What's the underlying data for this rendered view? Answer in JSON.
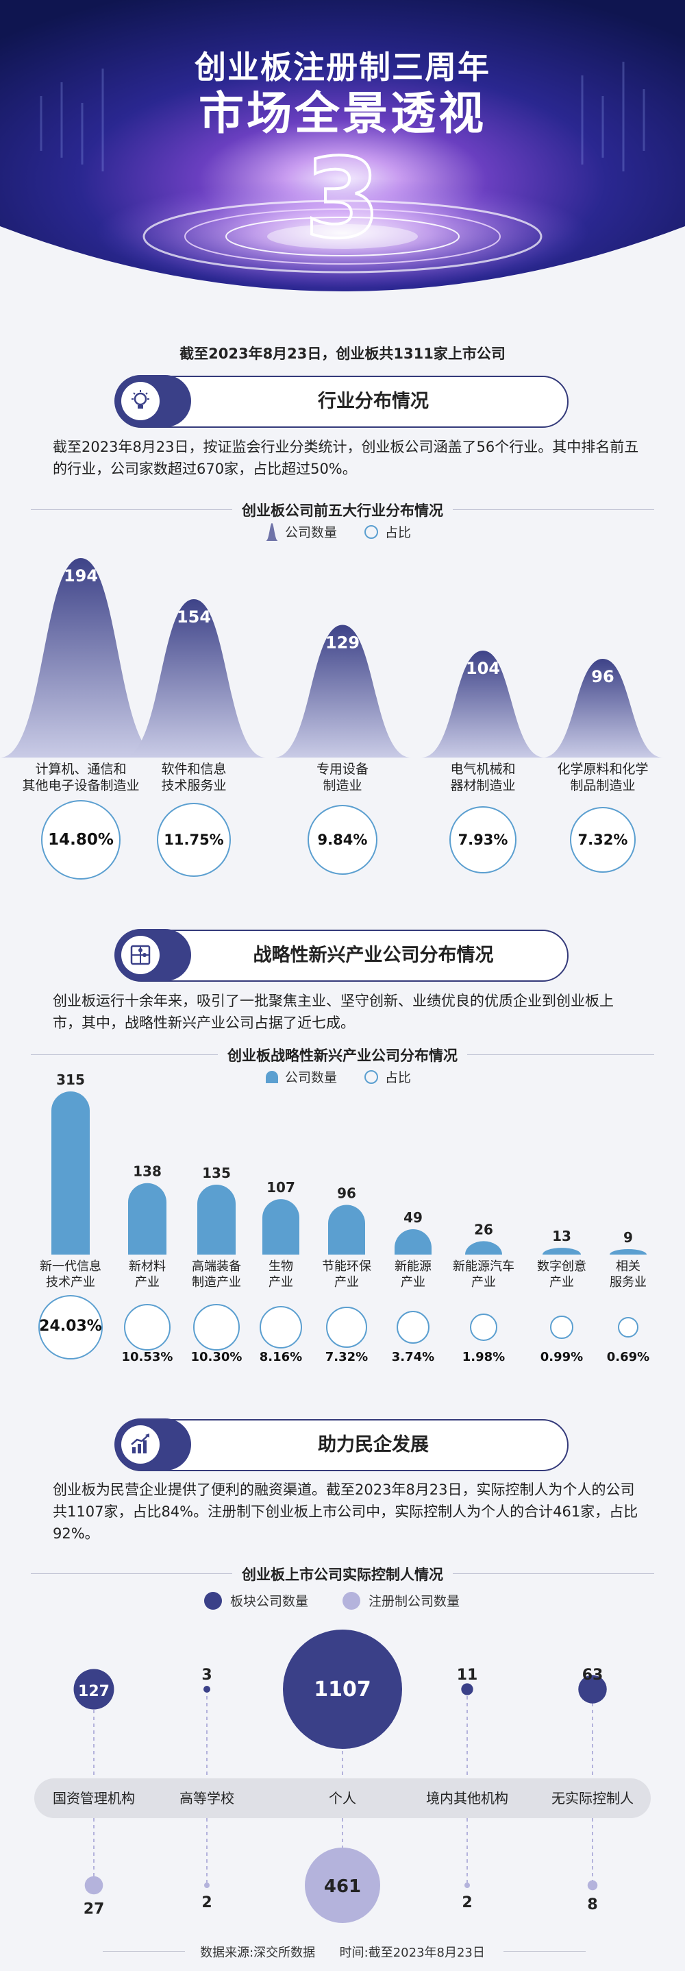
{
  "header": {
    "title_line1": "创业板注册制三周年",
    "title_line2": "市场全景透视",
    "big_number": "3",
    "headline": "截至2023年8月23日，创业板共1311家上市公司"
  },
  "section1": {
    "title": "行业分布情况",
    "icon": "lightbulb-icon",
    "paragraph": "截至2023年8月23日，按证监会行业分类统计，创业板公司涵盖了56个行业。其中排名前五的行业，公司家数超过670家，占比超过50%。"
  },
  "section2": {
    "title": "战略性新兴产业公司分布情况",
    "icon": "puzzle-icon",
    "paragraph": "创业板运行十余年来，吸引了一批聚焦主业、坚守创新、业绩优良的优质企业到创业板上市，其中，战略性新兴产业公司占据了近七成。"
  },
  "section3": {
    "title": "助力民企发展",
    "icon": "growth-chart-icon",
    "paragraph": "创业板为民营企业提供了便利的融资渠道。截至2023年8月23日，实际控制人为个人的公司共1107家，占比84%。注册制下创业板上市公司中，实际控制人为个人的合计461家，占比92%。"
  },
  "footer": {
    "source": "数据来源:深交所数据",
    "time": "时间:截至2023年8月23日"
  },
  "colors": {
    "navy": "#3a4088",
    "bell": "#6f73a8",
    "blue": "#5b9fd0",
    "lavender": "#b4b3dc"
  },
  "chart_data": [
    {
      "type": "area",
      "title": "创业板公司前五大行业分布情况",
      "legend": [
        "公司数量",
        "占比"
      ],
      "categories": [
        "计算机、通信和其他电子设备制造业",
        "软件和信息技术服务业",
        "专用设备制造业",
        "电气机械和器材制造业",
        "化学原料和化学制品制造业"
      ],
      "category_lines": [
        [
          "计算机、通信和",
          "其他电子设备制造业"
        ],
        [
          "软件和信息",
          "技术服务业"
        ],
        [
          "专用设备",
          "制造业"
        ],
        [
          "电气机械和",
          "器材制造业"
        ],
        [
          "化学原料和化学",
          "制品制造业"
        ]
      ],
      "series": [
        {
          "name": "公司数量",
          "values": [
            194,
            154,
            129,
            104,
            96
          ]
        },
        {
          "name": "占比",
          "values": [
            14.8,
            11.75,
            9.84,
            7.93,
            7.32
          ]
        }
      ],
      "value_labels": [
        "194",
        "154",
        "129",
        "104",
        "96"
      ],
      "pct_labels": [
        "14.80%",
        "11.75%",
        "9.84%",
        "7.93%",
        "7.32%"
      ]
    },
    {
      "type": "bar",
      "title": "创业板战略性新兴产业公司分布情况",
      "legend": [
        "公司数量",
        "占比"
      ],
      "categories": [
        "新一代信息技术产业",
        "新材料产业",
        "高端装备制造产业",
        "生物产业",
        "节能环保产业",
        "新能源产业",
        "新能源汽车产业",
        "数字创意产业",
        "相关服务业"
      ],
      "category_lines": [
        [
          "新一代信息",
          "技术产业"
        ],
        [
          "新材料",
          "产业"
        ],
        [
          "高端装备",
          "制造产业"
        ],
        [
          "生物",
          "产业"
        ],
        [
          "节能环保",
          "产业"
        ],
        [
          "新能源",
          "产业"
        ],
        [
          "新能源汽车",
          "产业"
        ],
        [
          "数字创意",
          "产业"
        ],
        [
          "相关",
          "服务业"
        ]
      ],
      "series": [
        {
          "name": "公司数量",
          "values": [
            315,
            138,
            135,
            107,
            96,
            49,
            26,
            13,
            9
          ]
        },
        {
          "name": "占比",
          "values": [
            24.03,
            10.53,
            10.3,
            8.16,
            7.32,
            3.74,
            1.98,
            0.99,
            0.69
          ]
        }
      ],
      "value_labels": [
        "315",
        "138",
        "135",
        "107",
        "96",
        "49",
        "26",
        "13",
        "9"
      ],
      "pct_labels": [
        "24.03%",
        "10.53%",
        "10.30%",
        "8.16%",
        "7.32%",
        "3.74%",
        "1.98%",
        "0.99%",
        "0.69%"
      ]
    },
    {
      "type": "scatter",
      "title": "创业板上市公司实际控制人情况",
      "legend": [
        "板块公司数量",
        "注册制公司数量"
      ],
      "categories": [
        "国资管理机构",
        "高等学校",
        "个人",
        "境内其他机构",
        "无实际控制人"
      ],
      "series": [
        {
          "name": "板块公司数量",
          "values": [
            127,
            3,
            1107,
            11,
            63
          ]
        },
        {
          "name": "注册制公司数量",
          "values": [
            27,
            2,
            461,
            2,
            8
          ]
        }
      ],
      "board_labels": [
        "127",
        "3",
        "1107",
        "11",
        "63"
      ],
      "reg_labels": [
        "27",
        "2",
        "461",
        "2",
        "8"
      ]
    }
  ]
}
